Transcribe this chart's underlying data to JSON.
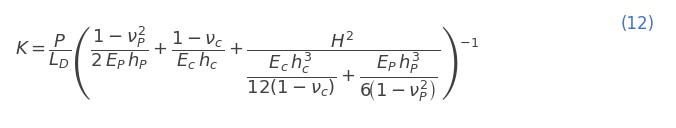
{
  "equation": "K = \\frac{P}{L_D} \\left( \\frac{1 - \\nu_P^2}{2\\,E_P\\,h_P} + \\frac{1 - \\nu_c}{E_c\\,h_c} + \\frac{H^2}{\\dfrac{E_c\\,h_c^3}{12(1-\\nu_c)} + \\dfrac{E_P\\,h_P^3}{6(1-\\nu_P^2)}} \\right)^{-1}",
  "eq_number": "(12)",
  "eq_number_color": "#4472C4",
  "text_color": "#404040",
  "background_color": "#ffffff",
  "fontsize": 13,
  "fig_width": 6.76,
  "fig_height": 1.28,
  "dpi": 100
}
